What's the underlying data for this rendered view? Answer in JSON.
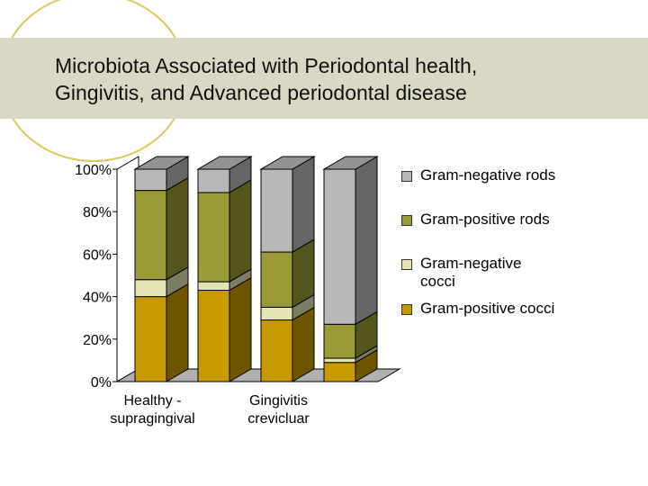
{
  "slide": {
    "title_lines": [
      "Microbiota Associated with Periodontal health,",
      "Gingivitis, and Advanced periodontal disease"
    ]
  },
  "chart_data": {
    "type": "bar",
    "stacked": true,
    "three_d": true,
    "ylim": [
      0,
      100
    ],
    "y_ticks": [
      "0%",
      "20%",
      "40%",
      "60%",
      "80%",
      "100%"
    ],
    "y_tick_values": [
      0,
      20,
      40,
      60,
      80,
      100
    ],
    "category_labels_shown": [
      {
        "lines": [
          "Healthy -",
          "supragingival"
        ],
        "bar_index": 0
      },
      {
        "lines": [
          "Gingivitis",
          "crevicluar"
        ],
        "bar_index": 2
      }
    ],
    "bars": 4,
    "series": [
      {
        "name": "Gram-positive cocci",
        "color": "#c89a00",
        "values": [
          40,
          43,
          29,
          9
        ]
      },
      {
        "name": "Gram-negative cocci",
        "color": "#e4e4b4",
        "values": [
          8,
          4,
          6,
          2
        ]
      },
      {
        "name": "Gram-positive rods",
        "color": "#9a9a36",
        "values": [
          42,
          42,
          26,
          16
        ]
      },
      {
        "name": "Gram-negative rods",
        "color": "#b8b8b8",
        "values": [
          10,
          11,
          39,
          73
        ]
      }
    ],
    "legend": {
      "position": "right",
      "items": [
        "Gram-negative rods",
        "Gram-positive rods",
        "Gram-negative cocci",
        "Gram-positive cocci"
      ]
    },
    "grid": false
  }
}
